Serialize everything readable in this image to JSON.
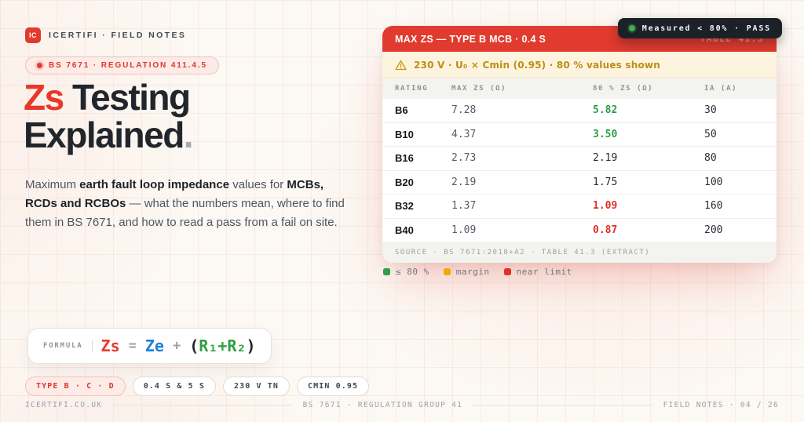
{
  "brand": {
    "logo": "IC",
    "name": "ICERTIFI · FIELD NOTES"
  },
  "badge": {
    "label": "BS 7671 · REGULATION 411.4.5"
  },
  "title": {
    "accent": "Zs",
    "line1_rest": " Testing",
    "line2": "Explained",
    "period": "."
  },
  "lede": {
    "segments": [
      {
        "text": "Maximum ",
        "bold": false
      },
      {
        "text": "earth fault loop impedance",
        "bold": true
      },
      {
        "text": " values for ",
        "bold": false
      },
      {
        "text": "MCBs, RCDs and RCBOs",
        "bold": true
      },
      {
        "text": " — what the numbers mean, where to find them in BS 7671, and how to read a pass from a fail on site.",
        "bold": false
      }
    ]
  },
  "pass_pill": {
    "label": "Measured < 80% · PASS",
    "dot_color": "#3fae54"
  },
  "card": {
    "header": {
      "title": "MAX ZS — TYPE B MCB · 0.4 S",
      "ghost": "TABLE 41.3"
    },
    "warning": "230 V · U₀ × Cmin (0.95) · 80 % values shown",
    "columns": [
      "RATING",
      "MAX ZS (Ω)",
      "80 % ZS (Ω)",
      "IA (A)"
    ],
    "rows": [
      {
        "rating": "B6",
        "max_zs": "7.28",
        "zs80": "5.82",
        "ia": "30",
        "status": "good"
      },
      {
        "rating": "B10",
        "max_zs": "4.37",
        "zs80": "3.50",
        "ia": "50",
        "status": "good"
      },
      {
        "rating": "B16",
        "max_zs": "2.73",
        "zs80": "2.19",
        "ia": "80",
        "status": "neutral"
      },
      {
        "rating": "B20",
        "max_zs": "2.19",
        "zs80": "1.75",
        "ia": "100",
        "status": "neutral"
      },
      {
        "rating": "B32",
        "max_zs": "1.37",
        "zs80": "1.09",
        "ia": "160",
        "status": "bad"
      },
      {
        "rating": "B40",
        "max_zs": "1.09",
        "zs80": "0.87",
        "ia": "200",
        "status": "bad"
      }
    ],
    "source": "SOURCE · BS 7671:2018+A2 · TABLE 41.3 (EXTRACT)"
  },
  "legend": [
    {
      "color": "#2f9e44",
      "label": "≤ 80 %"
    },
    {
      "color": "#f0a90b",
      "label": "margin"
    },
    {
      "color": "#e03128",
      "label": "near limit"
    }
  ],
  "formula": {
    "label": "FORMULA",
    "zs": "Zs",
    "eq": "=",
    "ze": "Ze",
    "plus": "+",
    "open": "(",
    "r1r2": "R₁+R₂",
    "close": ")"
  },
  "chips": [
    {
      "label": "TYPE B · C · D",
      "accent": true
    },
    {
      "label": "0.4 S & 5 S",
      "accent": false
    },
    {
      "label": "230 V TN",
      "accent": false
    },
    {
      "label": "CMIN 0.95",
      "accent": false
    }
  ],
  "footer": {
    "left": "ICERTIFI.CO.UK",
    "center": "BS 7671 · REGULATION GROUP 41",
    "right": "FIELD NOTES · 04 / 26"
  },
  "colors": {
    "accent_red": "#e13a2e",
    "green": "#2f9e44",
    "amber": "#f0a90b",
    "blue": "#1f7fd4",
    "dark": "#1c2127"
  }
}
